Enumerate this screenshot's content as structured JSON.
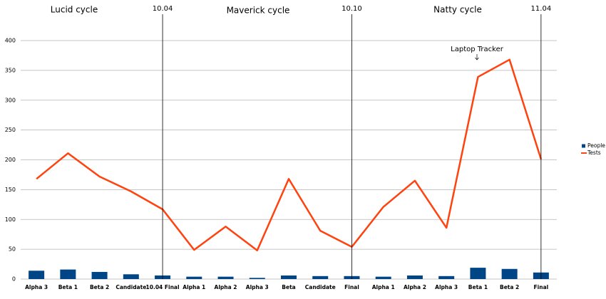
{
  "chart_data": {
    "type": "bar-line",
    "categories": [
      "Alpha 3",
      "Beta 1",
      "Beta 2",
      "Candidate",
      "10.04 Final",
      "Alpha 1",
      "Alpha 2",
      "Alpha 3",
      "Beta",
      "Candidate",
      "Final",
      "Alpha 1",
      "Alpha 2",
      "Alpha 3",
      "Beta 1",
      "Beta 2",
      "Final"
    ],
    "series": [
      {
        "name": "People",
        "type": "bar",
        "color": "#004586",
        "values": [
          14,
          16,
          12,
          8,
          6,
          4,
          4,
          2,
          6,
          5,
          5,
          4,
          6,
          5,
          19,
          17,
          11
        ]
      },
      {
        "name": "Tests",
        "type": "line",
        "color": "#ff420e",
        "values": [
          168,
          211,
          172,
          147,
          117,
          49,
          88,
          48,
          168,
          81,
          54,
          121,
          165,
          86,
          339,
          368,
          201
        ]
      }
    ],
    "ylim": [
      0,
      400
    ],
    "yticks": [
      0,
      50,
      100,
      150,
      200,
      250,
      300,
      350,
      400
    ],
    "grid": true,
    "cycles": [
      "Lucid cycle",
      "Maverick cycle",
      "Natty cycle"
    ],
    "releases": [
      "10.04",
      "10.10",
      "11.04"
    ],
    "annotation": "Laptop Tracker"
  }
}
